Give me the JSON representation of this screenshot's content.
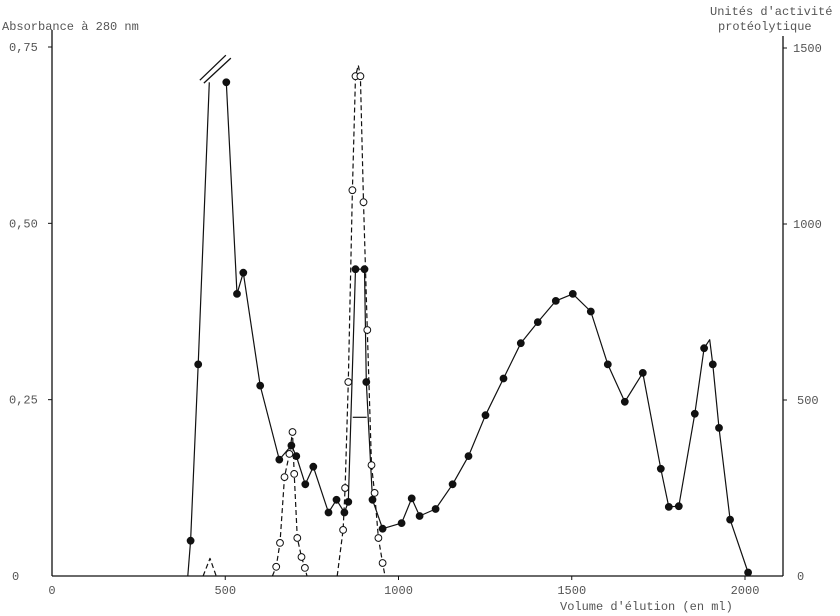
{
  "chart_data": {
    "type": "line",
    "grid": false,
    "x_axis": {
      "label": "Volume d'élution (en ml)",
      "range": [
        0,
        2110
      ],
      "ticks": [
        {
          "value": 0,
          "label": "0"
        },
        {
          "value": 500,
          "label": "500"
        },
        {
          "value": 1000,
          "label": "1000"
        },
        {
          "value": 1500,
          "label": "1500"
        },
        {
          "value": 2000,
          "label": "2000"
        }
      ]
    },
    "y_axis_left": {
      "label": "Absorbance à 280 nm",
      "range": [
        0,
        0.77
      ],
      "ticks": [
        {
          "value": 0,
          "label": "0"
        },
        {
          "value": 0.25,
          "label": "0,25"
        },
        {
          "value": 0.5,
          "label": "0,50"
        },
        {
          "value": 0.75,
          "label": "0,75"
        }
      ]
    },
    "y_axis_right": {
      "label_lines": [
        "Unités d'activité",
        "protéolytique"
      ],
      "range": [
        0,
        1530
      ],
      "ticks": [
        {
          "value": 0,
          "label": "0"
        },
        {
          "value": 500,
          "label": "500"
        },
        {
          "value": 1000,
          "label": "1000"
        },
        {
          "value": 1500,
          "label": "1500"
        }
      ]
    },
    "series": [
      {
        "axis": "left",
        "line": "solid",
        "marker": "filled-circle",
        "color": "#111111",
        "segments": [
          [
            [
              392,
              0
            ],
            [
              400,
              0.05
            ],
            [
              422,
              0.3
            ],
            [
              454,
              0.7
            ]
          ],
          [
            [
              503,
              0.7
            ],
            [
              534,
              0.4
            ],
            [
              552,
              0.43
            ],
            [
              601,
              0.27
            ],
            [
              656,
              0.165
            ],
            [
              691,
              0.185
            ],
            [
              705,
              0.17
            ],
            [
              731,
              0.13
            ],
            [
              754,
              0.155
            ],
            [
              798,
              0.09
            ],
            [
              821,
              0.108
            ],
            [
              844,
              0.09
            ],
            [
              855,
              0.105
            ],
            [
              876,
              0.435
            ],
            [
              902,
              0.435
            ],
            [
              907,
              0.275
            ],
            [
              925,
              0.108
            ],
            [
              954,
              0.067
            ],
            [
              1009,
              0.075
            ],
            [
              1038,
              0.11
            ],
            [
              1061,
              0.085
            ],
            [
              1107,
              0.095
            ],
            [
              1156,
              0.13
            ],
            [
              1202,
              0.17
            ],
            [
              1251,
              0.228
            ],
            [
              1303,
              0.28
            ],
            [
              1353,
              0.33
            ],
            [
              1402,
              0.36
            ],
            [
              1454,
              0.39
            ],
            [
              1503,
              0.4
            ],
            [
              1555,
              0.375
            ],
            [
              1604,
              0.3
            ],
            [
              1653,
              0.247
            ],
            [
              1705,
              0.288
            ],
            [
              1757,
              0.152
            ],
            [
              1780,
              0.098
            ],
            [
              1809,
              0.099
            ],
            [
              1855,
              0.23
            ],
            [
              1882,
              0.323
            ],
            [
              1898,
              0.335
            ],
            [
              1907,
              0.3
            ],
            [
              1925,
              0.21
            ],
            [
              1957,
              0.08
            ],
            [
              2009,
              0.005
            ]
          ]
        ],
        "markers": [
          [
            400,
            0.05
          ],
          [
            422,
            0.3
          ],
          [
            503,
            0.7
          ],
          [
            534,
            0.4
          ],
          [
            552,
            0.43
          ],
          [
            601,
            0.27
          ],
          [
            656,
            0.165
          ],
          [
            691,
            0.185
          ],
          [
            705,
            0.17
          ],
          [
            731,
            0.13
          ],
          [
            754,
            0.155
          ],
          [
            798,
            0.09
          ],
          [
            821,
            0.108
          ],
          [
            844,
            0.09
          ],
          [
            855,
            0.105
          ],
          [
            876,
            0.435
          ],
          [
            902,
            0.435
          ],
          [
            907,
            0.275
          ],
          [
            925,
            0.108
          ],
          [
            954,
            0.067
          ],
          [
            1009,
            0.075
          ],
          [
            1038,
            0.11
          ],
          [
            1061,
            0.085
          ],
          [
            1107,
            0.095
          ],
          [
            1156,
            0.13
          ],
          [
            1202,
            0.17
          ],
          [
            1251,
            0.228
          ],
          [
            1303,
            0.28
          ],
          [
            1353,
            0.33
          ],
          [
            1402,
            0.36
          ],
          [
            1454,
            0.39
          ],
          [
            1503,
            0.4
          ],
          [
            1555,
            0.375
          ],
          [
            1604,
            0.3
          ],
          [
            1653,
            0.247
          ],
          [
            1705,
            0.288
          ],
          [
            1757,
            0.152
          ],
          [
            1780,
            0.098
          ],
          [
            1809,
            0.099
          ],
          [
            1855,
            0.23
          ],
          [
            1882,
            0.323
          ],
          [
            1907,
            0.3
          ],
          [
            1925,
            0.21
          ],
          [
            1957,
            0.08
          ],
          [
            2009,
            0.005
          ]
        ],
        "axis_break": {
          "x": 470,
          "y": 0.72
        },
        "annotation_segments": [
          {
            "x": [
              868,
              908
            ],
            "y": 0.225
          }
        ]
      },
      {
        "axis": "right",
        "line": "dashed",
        "marker": "open-circle",
        "color": "#111111",
        "segments": [
          [
            [
              436,
              0
            ],
            [
              456,
              50
            ],
            [
              474,
              0
            ]
          ],
          [
            [
              636,
              0
            ],
            [
              647,
              26
            ],
            [
              658,
              94
            ],
            [
              671,
              281
            ],
            [
              685,
              347
            ],
            [
              694,
              409
            ],
            [
              699,
              290
            ],
            [
              708,
              108
            ],
            [
              720,
              54
            ],
            [
              730,
              23
            ],
            [
              736,
              0
            ]
          ],
          [
            [
              823,
              0
            ],
            [
              840,
              131
            ],
            [
              846,
              250
            ],
            [
              855,
              551
            ],
            [
              867,
              1096
            ],
            [
              876,
              1420
            ],
            [
              884,
              1451
            ],
            [
              890,
              1420
            ],
            [
              899,
              1062
            ],
            [
              910,
              699
            ],
            [
              922,
              315
            ],
            [
              931,
              236
            ],
            [
              942,
              108
            ],
            [
              954,
              37
            ],
            [
              961,
              0
            ]
          ]
        ],
        "markers": [
          [
            647,
            26
          ],
          [
            658,
            94
          ],
          [
            671,
            281
          ],
          [
            685,
            347
          ],
          [
            694,
            409
          ],
          [
            699,
            290
          ],
          [
            708,
            108
          ],
          [
            720,
            54
          ],
          [
            730,
            23
          ],
          [
            840,
            131
          ],
          [
            846,
            250
          ],
          [
            855,
            551
          ],
          [
            867,
            1096
          ],
          [
            876,
            1420
          ],
          [
            890,
            1420
          ],
          [
            899,
            1062
          ],
          [
            910,
            699
          ],
          [
            922,
            315
          ],
          [
            931,
            236
          ],
          [
            942,
            108
          ],
          [
            954,
            37
          ]
        ]
      }
    ]
  }
}
